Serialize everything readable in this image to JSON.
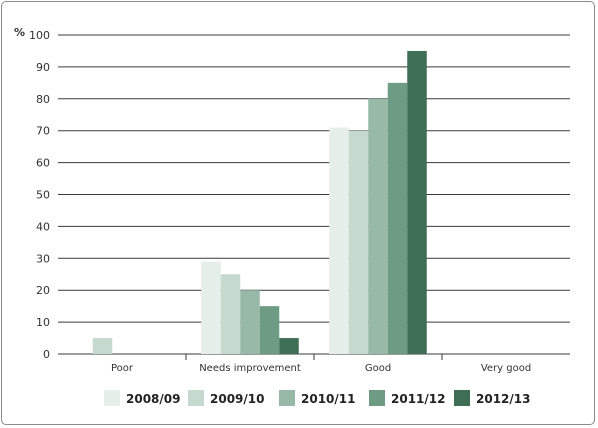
{
  "chart_data": {
    "type": "bar",
    "title": "",
    "xlabel": "",
    "ylabel": "%",
    "ylim": [
      0,
      100
    ],
    "yticks": [
      0,
      10,
      20,
      30,
      40,
      50,
      60,
      70,
      80,
      90,
      100
    ],
    "categories": [
      "Poor",
      "Needs improvement",
      "Good",
      "Very good"
    ],
    "series": [
      {
        "name": "2008/09",
        "color": "#e6eeea",
        "values": [
          0,
          29,
          71,
          0
        ]
      },
      {
        "name": "2009/10",
        "color": "#c6d9cf",
        "values": [
          5,
          25,
          70,
          0
        ]
      },
      {
        "name": "2010/11",
        "color": "#98b9a8",
        "values": [
          0,
          20,
          80,
          0
        ]
      },
      {
        "name": "2011/12",
        "color": "#6e9b84",
        "values": [
          0,
          15,
          85,
          0
        ]
      },
      {
        "name": "2012/13",
        "color": "#3e6f55",
        "values": [
          0,
          5,
          95,
          0
        ]
      }
    ],
    "grid": true,
    "legend_position": "bottom"
  }
}
